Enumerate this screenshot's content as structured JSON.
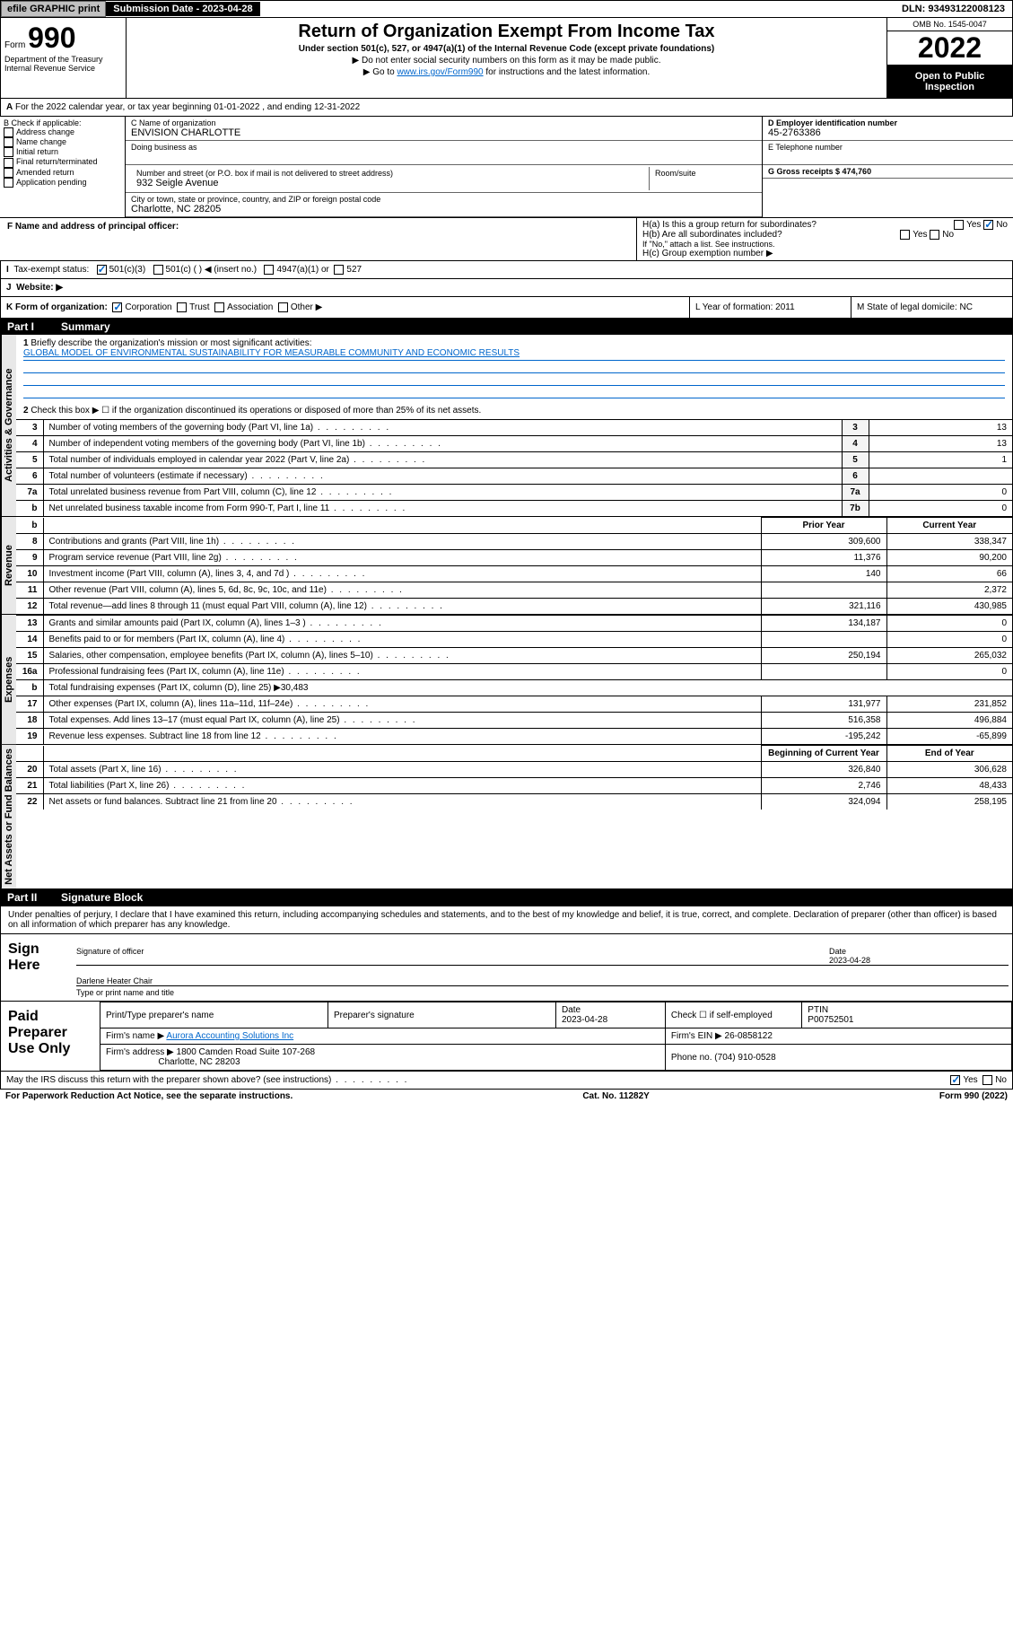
{
  "topbar": {
    "efile_btn": "efile GRAPHIC print",
    "submission_label": "Submission Date - 2023-04-28",
    "dln_label": "DLN: 93493122008123"
  },
  "header": {
    "form_word": "Form",
    "form_num": "990",
    "title": "Return of Organization Exempt From Income Tax",
    "subtitle": "Under section 501(c), 527, or 4947(a)(1) of the Internal Revenue Code (except private foundations)",
    "sub2": "▶ Do not enter social security numbers on this form as it may be made public.",
    "sub3_prefix": "▶ Go to ",
    "sub3_link": "www.irs.gov/Form990",
    "sub3_suffix": " for instructions and the latest information.",
    "omb": "OMB No. 1545-0047",
    "year": "2022",
    "open": "Open to Public Inspection",
    "dept": "Department of the Treasury Internal Revenue Service"
  },
  "period": {
    "text": "For the 2022 calendar year, or tax year beginning 01-01-2022    , and ending 12-31-2022"
  },
  "box_b": {
    "label": "B Check if applicable:",
    "items": [
      "Address change",
      "Name change",
      "Initial return",
      "Final return/terminated",
      "Amended return",
      "Application pending"
    ]
  },
  "box_c": {
    "name_label": "C Name of organization",
    "name": "ENVISION CHARLOTTE",
    "dba_label": "Doing business as",
    "addr_label": "Number and street (or P.O. box if mail is not delivered to street address)",
    "room_label": "Room/suite",
    "addr": "932 Seigle Avenue",
    "city_label": "City or town, state or province, country, and ZIP or foreign postal code",
    "city": "Charlotte, NC  28205"
  },
  "box_d": {
    "label": "D Employer identification number",
    "value": "45-2763386"
  },
  "box_e": {
    "label": "E Telephone number",
    "value": ""
  },
  "box_g": {
    "label": "G Gross receipts $ 474,760"
  },
  "box_f": {
    "label": "F  Name and address of principal officer:"
  },
  "box_h": {
    "ha": "H(a)  Is this a group return for subordinates?",
    "hb": "H(b)  Are all subordinates included?",
    "hb_note": "If \"No,\" attach a list. See instructions.",
    "hc": "H(c)  Group exemption number ▶"
  },
  "box_i": {
    "label": "Tax-exempt status:",
    "opts": [
      "501(c)(3)",
      "501(c) (  ) ◀ (insert no.)",
      "4947(a)(1) or",
      "527"
    ]
  },
  "box_j": {
    "label": "Website: ▶"
  },
  "box_k": {
    "label": "K Form of organization:",
    "opts": [
      "Corporation",
      "Trust",
      "Association",
      "Other ▶"
    ]
  },
  "box_l": {
    "label": "L Year of formation: 2011"
  },
  "box_m": {
    "label": "M State of legal domicile: NC"
  },
  "part1": {
    "header_num": "Part I",
    "header_title": "Summary",
    "q1": "Briefly describe the organization's mission or most significant activities:",
    "mission": "GLOBAL MODEL OF ENVIRONMENTAL SUSTAINABILITY FOR MEASURABLE COMMUNITY AND ECONOMIC RESULTS",
    "q2": "Check this box ▶ ☐  if the organization discontinued its operations or disposed of more than 25% of its net assets.",
    "governance_label": "Activities & Governance",
    "revenue_label": "Revenue",
    "expenses_label": "Expenses",
    "netassets_label": "Net Assets or Fund Balances",
    "rows_gov": [
      {
        "n": "3",
        "d": "Number of voting members of the governing body (Part VI, line 1a)",
        "k": "3",
        "v": "13"
      },
      {
        "n": "4",
        "d": "Number of independent voting members of the governing body (Part VI, line 1b)",
        "k": "4",
        "v": "13"
      },
      {
        "n": "5",
        "d": "Total number of individuals employed in calendar year 2022 (Part V, line 2a)",
        "k": "5",
        "v": "1"
      },
      {
        "n": "6",
        "d": "Total number of volunteers (estimate if necessary)",
        "k": "6",
        "v": ""
      },
      {
        "n": "7a",
        "d": "Total unrelated business revenue from Part VIII, column (C), line 12",
        "k": "7a",
        "v": "0"
      },
      {
        "n": "b",
        "d": "Net unrelated business taxable income from Form 990-T, Part I, line 11",
        "k": "7b",
        "v": "0"
      }
    ],
    "prior_hdr": "Prior Year",
    "curr_hdr": "Current Year",
    "rows_rev": [
      {
        "n": "8",
        "d": "Contributions and grants (Part VIII, line 1h)",
        "p": "309,600",
        "c": "338,347"
      },
      {
        "n": "9",
        "d": "Program service revenue (Part VIII, line 2g)",
        "p": "11,376",
        "c": "90,200"
      },
      {
        "n": "10",
        "d": "Investment income (Part VIII, column (A), lines 3, 4, and 7d )",
        "p": "140",
        "c": "66"
      },
      {
        "n": "11",
        "d": "Other revenue (Part VIII, column (A), lines 5, 6d, 8c, 9c, 10c, and 11e)",
        "p": "",
        "c": "2,372"
      },
      {
        "n": "12",
        "d": "Total revenue—add lines 8 through 11 (must equal Part VIII, column (A), line 12)",
        "p": "321,116",
        "c": "430,985"
      }
    ],
    "rows_exp": [
      {
        "n": "13",
        "d": "Grants and similar amounts paid (Part IX, column (A), lines 1–3 )",
        "p": "134,187",
        "c": "0"
      },
      {
        "n": "14",
        "d": "Benefits paid to or for members (Part IX, column (A), line 4)",
        "p": "",
        "c": "0"
      },
      {
        "n": "15",
        "d": "Salaries, other compensation, employee benefits (Part IX, column (A), lines 5–10)",
        "p": "250,194",
        "c": "265,032"
      },
      {
        "n": "16a",
        "d": "Professional fundraising fees (Part IX, column (A), line 11e)",
        "p": "",
        "c": "0"
      },
      {
        "n": "b",
        "d": "Total fundraising expenses (Part IX, column (D), line 25) ▶30,483",
        "p": null,
        "c": null
      },
      {
        "n": "17",
        "d": "Other expenses (Part IX, column (A), lines 11a–11d, 11f–24e)",
        "p": "131,977",
        "c": "231,852"
      },
      {
        "n": "18",
        "d": "Total expenses. Add lines 13–17 (must equal Part IX, column (A), line 25)",
        "p": "516,358",
        "c": "496,884"
      },
      {
        "n": "19",
        "d": "Revenue less expenses. Subtract line 18 from line 12",
        "p": "-195,242",
        "c": "-65,899"
      }
    ],
    "begin_hdr": "Beginning of Current Year",
    "end_hdr": "End of Year",
    "rows_net": [
      {
        "n": "20",
        "d": "Total assets (Part X, line 16)",
        "p": "326,840",
        "c": "306,628"
      },
      {
        "n": "21",
        "d": "Total liabilities (Part X, line 26)",
        "p": "2,746",
        "c": "48,433"
      },
      {
        "n": "22",
        "d": "Net assets or fund balances. Subtract line 21 from line 20",
        "p": "324,094",
        "c": "258,195"
      }
    ]
  },
  "part2": {
    "header_num": "Part II",
    "header_title": "Signature Block",
    "declaration": "Under penalties of perjury, I declare that I have examined this return, including accompanying schedules and statements, and to the best of my knowledge and belief, it is true, correct, and complete. Declaration of preparer (other than officer) is based on all information of which preparer has any knowledge.",
    "sign_here": "Sign Here",
    "sig_officer": "Signature of officer",
    "date_label": "Date",
    "sig_date": "2023-04-28",
    "officer_name": "Darlene Heater Chair",
    "type_name": "Type or print name and title",
    "paid_label": "Paid Preparer Use Only",
    "prep_name_label": "Print/Type preparer's name",
    "prep_sig_label": "Preparer's signature",
    "prep_date_label": "Date",
    "prep_date": "2023-04-28",
    "check_if": "Check ☐ if self-employed",
    "ptin_label": "PTIN",
    "ptin": "P00752501",
    "firm_name_label": "Firm's name     ▶",
    "firm_name": "Aurora Accounting Solutions Inc",
    "firm_ein_label": "Firm's EIN ▶",
    "firm_ein": "26-0858122",
    "firm_addr_label": "Firm's address ▶",
    "firm_addr1": "1800 Camden Road Suite 107-268",
    "firm_addr2": "Charlotte, NC  28203",
    "phone_label": "Phone no.",
    "phone": "(704) 910-0528",
    "discuss": "May the IRS discuss this return with the preparer shown above? (see instructions)"
  },
  "footer": {
    "left": "For Paperwork Reduction Act Notice, see the separate instructions.",
    "mid": "Cat. No. 11282Y",
    "right": "Form 990 (2022)"
  },
  "yes": "Yes",
  "no": "No"
}
